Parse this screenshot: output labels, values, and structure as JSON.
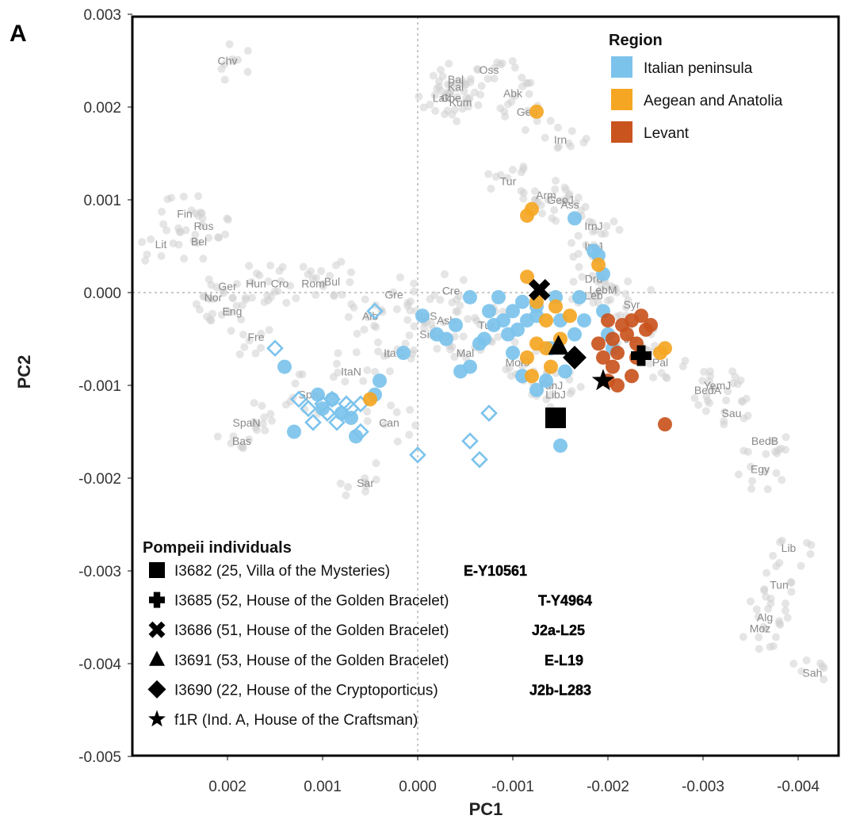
{
  "panel_label": "A",
  "colors": {
    "background_points": "#cfcfcf",
    "italian_peninsula": "#7cc3ec",
    "aegean_anatolia": "#f5a623",
    "levant": "#c9541e",
    "pompeii": "#000000"
  },
  "chart_data": {
    "type": "scatter",
    "xlabel": "PC1",
    "ylabel": "PC2",
    "xlim": [
      0.0028,
      -0.0042
    ],
    "ylim": [
      -0.0051,
      0.0029
    ],
    "x_reversed": true,
    "xticks": [
      0.002,
      0.001,
      0.0,
      -0.001,
      -0.002,
      -0.003,
      -0.004
    ],
    "xtick_labels": [
      "0.002",
      "0.001",
      "0.000",
      "-0.001",
      "-0.002",
      "-0.003",
      "-0.004"
    ],
    "yticks": [
      0.003,
      0.002,
      0.001,
      0.0,
      -0.001,
      -0.002,
      -0.003,
      -0.004,
      -0.005
    ],
    "ytick_labels": [
      "0.003",
      "0.002",
      "0.001",
      "0.000",
      "-0.001",
      "-0.002",
      "-0.003",
      "-0.004",
      "-0.005"
    ],
    "reference_lines": {
      "x": 0.0,
      "y": 0.0
    },
    "grid": false,
    "reference_populations": [
      {
        "label": "Chv",
        "x": 0.002,
        "y": 0.0025
      },
      {
        "label": "Oss",
        "x": -0.00075,
        "y": 0.0024
      },
      {
        "label": "Bal",
        "x": -0.0004,
        "y": 0.0023
      },
      {
        "label": "Kal",
        "x": -0.0004,
        "y": 0.00222
      },
      {
        "label": "Lak",
        "x": -0.00025,
        "y": 0.0021
      },
      {
        "label": "Che",
        "x": -0.00035,
        "y": 0.0021
      },
      {
        "label": "Kum",
        "x": -0.00045,
        "y": 0.00205
      },
      {
        "label": "Abk",
        "x": -0.001,
        "y": 0.00215
      },
      {
        "label": "Geo",
        "x": -0.00115,
        "y": 0.00195
      },
      {
        "label": "Irn",
        "x": -0.0015,
        "y": 0.00165
      },
      {
        "label": "Tur",
        "x": -0.00095,
        "y": 0.0012
      },
      {
        "label": "Arm",
        "x": -0.00135,
        "y": 0.00105
      },
      {
        "label": "GeoJ",
        "x": -0.0015,
        "y": 0.001
      },
      {
        "label": "Ass",
        "x": -0.0016,
        "y": 0.00095
      },
      {
        "label": "IrnJ",
        "x": -0.00185,
        "y": 0.00072
      },
      {
        "label": "IrqJ",
        "x": -0.00185,
        "y": 0.0005
      },
      {
        "label": "Dru",
        "x": -0.00185,
        "y": 0.00015
      },
      {
        "label": "LebM",
        "x": -0.00195,
        "y": 3e-05
      },
      {
        "label": "Leb",
        "x": -0.00185,
        "y": -3e-05
      },
      {
        "label": "Syr",
        "x": -0.00225,
        "y": -0.00013
      },
      {
        "label": "Jor",
        "x": -0.00225,
        "y": -0.0005
      },
      {
        "label": "Pal",
        "x": -0.00255,
        "y": -0.00075
      },
      {
        "label": "BedA",
        "x": -0.00305,
        "y": -0.00105
      },
      {
        "label": "YemJ",
        "x": -0.00315,
        "y": -0.001
      },
      {
        "label": "Sau",
        "x": -0.0033,
        "y": -0.0013
      },
      {
        "label": "BedB",
        "x": -0.00365,
        "y": -0.0016
      },
      {
        "label": "Egy",
        "x": -0.0036,
        "y": -0.0019
      },
      {
        "label": "Lib",
        "x": -0.0039,
        "y": -0.00275
      },
      {
        "label": "Tun",
        "x": -0.0038,
        "y": -0.00315
      },
      {
        "label": "Alg",
        "x": -0.00365,
        "y": -0.0035
      },
      {
        "label": "Moz",
        "x": -0.0036,
        "y": -0.00362
      },
      {
        "label": "Sah",
        "x": -0.00415,
        "y": -0.0041
      },
      {
        "label": "Fin",
        "x": 0.00245,
        "y": 0.00085
      },
      {
        "label": "Rus",
        "x": 0.00225,
        "y": 0.00072
      },
      {
        "label": "Bel",
        "x": 0.0023,
        "y": 0.00055
      },
      {
        "label": "Lit",
        "x": 0.0027,
        "y": 0.00052
      },
      {
        "label": "Nor",
        "x": 0.00215,
        "y": -5e-05
      },
      {
        "label": "Ger",
        "x": 0.002,
        "y": 7e-05
      },
      {
        "label": "Hun",
        "x": 0.0017,
        "y": 0.0001
      },
      {
        "label": "Cro",
        "x": 0.00145,
        "y": 0.0001
      },
      {
        "label": "Rom",
        "x": 0.0011,
        "y": 0.0001
      },
      {
        "label": "Bul",
        "x": 0.0009,
        "y": 0.00012
      },
      {
        "label": "Eng",
        "x": 0.00195,
        "y": -0.0002
      },
      {
        "label": "Alb",
        "x": 0.0005,
        "y": -0.00025
      },
      {
        "label": "Gre",
        "x": 0.00025,
        "y": -2e-05
      },
      {
        "label": "Fre",
        "x": 0.0017,
        "y": -0.00048
      },
      {
        "label": "ItaC",
        "x": 0.00025,
        "y": -0.00065
      },
      {
        "label": "ItaN",
        "x": 0.0007,
        "y": -0.00085
      },
      {
        "label": "Cre",
        "x": -0.00035,
        "y": 2e-05
      },
      {
        "label": "ItaS",
        "x": -0.0001,
        "y": -0.00025
      },
      {
        "label": "Ash",
        "x": -0.0003,
        "y": -0.0003
      },
      {
        "label": "Sic",
        "x": -0.0001,
        "y": -0.00045
      },
      {
        "label": "TurJ",
        "x": -0.00075,
        "y": -0.00035
      },
      {
        "label": "Mal",
        "x": -0.0005,
        "y": -0.00065
      },
      {
        "label": "MorJ",
        "x": -0.00105,
        "y": -0.00075
      },
      {
        "label": "TunJ",
        "x": -0.0014,
        "y": -0.001
      },
      {
        "label": "LibJ",
        "x": -0.00145,
        "y": -0.0011
      },
      {
        "label": "Spa",
        "x": 0.00115,
        "y": -0.0011
      },
      {
        "label": "Can",
        "x": 0.0003,
        "y": -0.0014
      },
      {
        "label": "SpaN",
        "x": 0.0018,
        "y": -0.0014
      },
      {
        "label": "Bas",
        "x": 0.00185,
        "y": -0.0016
      },
      {
        "label": "Sar",
        "x": 0.00055,
        "y": -0.00205
      }
    ],
    "series": [
      {
        "name": "Italian peninsula",
        "marker": "circle",
        "points": [
          [
            0.0014,
            -0.0008
          ],
          [
            0.0013,
            -0.0015
          ],
          [
            0.00105,
            -0.0011
          ],
          [
            0.001,
            -0.00125
          ],
          [
            0.0009,
            -0.00115
          ],
          [
            0.0008,
            -0.0013
          ],
          [
            0.0007,
            -0.00135
          ],
          [
            0.00065,
            -0.00155
          ],
          [
            0.00045,
            -0.0011
          ],
          [
            0.0004,
            -0.00095
          ],
          [
            0.00015,
            -0.00065
          ],
          [
            -5e-05,
            -0.00025
          ],
          [
            -0.0002,
            -0.00045
          ],
          [
            -0.0003,
            -0.0005
          ],
          [
            -0.0004,
            -0.00035
          ],
          [
            -0.00055,
            -5e-05
          ],
          [
            -0.00045,
            -0.00085
          ],
          [
            -0.00055,
            -0.0008
          ],
          [
            -0.00065,
            -0.00055
          ],
          [
            -0.00075,
            -0.0002
          ],
          [
            -0.00085,
            -5e-05
          ],
          [
            -0.0009,
            -0.0003
          ],
          [
            -0.00095,
            -0.00045
          ],
          [
            -0.001,
            -0.0002
          ],
          [
            -0.00105,
            -0.0004
          ],
          [
            -0.0011,
            -0.0001
          ],
          [
            -0.00115,
            -0.0003
          ],
          [
            -0.00125,
            -0.00025
          ],
          [
            -0.001,
            -0.00065
          ],
          [
            -0.0011,
            -0.0009
          ],
          [
            -0.00125,
            -0.00105
          ],
          [
            -0.00135,
            -0.00095
          ],
          [
            -0.0014,
            -0.0006
          ],
          [
            -0.00145,
            -5e-05
          ],
          [
            -0.0015,
            -0.0003
          ],
          [
            -0.00155,
            -0.00085
          ],
          [
            -0.00165,
            -0.00045
          ],
          [
            -0.0017,
            -5e-05
          ],
          [
            -0.00175,
            -0.0003
          ],
          [
            -0.00165,
            0.0008
          ],
          [
            -0.00185,
            0.00045
          ],
          [
            -0.0019,
            0.0004
          ],
          [
            -0.00195,
            0.0002
          ],
          [
            -0.00195,
            -0.0002
          ],
          [
            -0.002,
            -0.00045
          ],
          [
            -0.00205,
            -0.0006
          ],
          [
            -0.0015,
            -0.00165
          ],
          [
            -0.0007,
            -0.0005
          ],
          [
            -0.0008,
            -0.00035
          ],
          [
            -0.00125,
            -0.00015
          ]
        ]
      },
      {
        "name": "Italian peninsula (ancient)",
        "marker": "diamond-open",
        "points": [
          [
            0.0015,
            -0.0006
          ],
          [
            0.00125,
            -0.00115
          ],
          [
            0.00115,
            -0.00125
          ],
          [
            0.0011,
            -0.0014
          ],
          [
            0.001,
            -0.0012
          ],
          [
            0.00095,
            -0.0013
          ],
          [
            0.0009,
            -0.00115
          ],
          [
            0.00085,
            -0.0014
          ],
          [
            0.0008,
            -0.0013
          ],
          [
            0.00075,
            -0.0012
          ],
          [
            0.0007,
            -0.00125
          ],
          [
            0.0006,
            -0.0012
          ],
          [
            0.0006,
            -0.0015
          ],
          [
            0.00045,
            -0.0002
          ],
          [
            0.0,
            -0.00175
          ],
          [
            -0.00055,
            -0.0016
          ],
          [
            -0.00065,
            -0.0018
          ],
          [
            -0.00075,
            -0.0013
          ]
        ]
      },
      {
        "name": "Aegean and Anatolia",
        "marker": "circle",
        "points": [
          [
            -0.00125,
            0.00195
          ],
          [
            -0.0012,
            0.0009
          ],
          [
            -0.00115,
            0.00083
          ],
          [
            -0.00115,
            0.00017
          ],
          [
            -0.00125,
            -0.0001
          ],
          [
            -0.00135,
            -0.0003
          ],
          [
            -0.00145,
            -0.00015
          ],
          [
            -0.0015,
            -0.0005
          ],
          [
            -0.00125,
            -0.00055
          ],
          [
            -0.00115,
            -0.0007
          ],
          [
            -0.0012,
            -0.0009
          ],
          [
            -0.0016,
            -0.00025
          ],
          [
            -0.0019,
            0.0003
          ],
          [
            -0.00255,
            -0.00065
          ],
          [
            -0.0026,
            -0.0006
          ],
          [
            0.0005,
            -0.00115
          ],
          [
            -0.00135,
            -0.0006
          ],
          [
            -0.0014,
            -0.0008
          ]
        ]
      },
      {
        "name": "Levant",
        "marker": "circle",
        "points": [
          [
            -0.002,
            -0.0003
          ],
          [
            -0.00205,
            -0.0005
          ],
          [
            -0.0021,
            -0.00065
          ],
          [
            -0.00215,
            -0.00035
          ],
          [
            -0.0022,
            -0.00045
          ],
          [
            -0.00225,
            -0.0003
          ],
          [
            -0.0023,
            -0.00055
          ],
          [
            -0.0024,
            -0.0004
          ],
          [
            -0.00245,
            -0.00035
          ],
          [
            -0.0019,
            -0.00055
          ],
          [
            -0.00195,
            -0.0007
          ],
          [
            -0.00205,
            -0.0008
          ],
          [
            -0.002,
            -0.00095
          ],
          [
            -0.0021,
            -0.001
          ],
          [
            -0.0023,
            -0.0007
          ],
          [
            -0.00225,
            -0.0009
          ],
          [
            -0.0026,
            -0.00142
          ],
          [
            -0.00235,
            -0.00025
          ]
        ]
      }
    ],
    "pompeii_individuals": [
      {
        "id": "I3682",
        "description": "(25, Villa of the Mysteries)",
        "haplogroup": "E-Y10561",
        "marker": "square",
        "x": -0.00145,
        "y": -0.00135
      },
      {
        "id": "I3685",
        "description": "(52, House of the Golden Bracelet)",
        "haplogroup": "T-Y4964",
        "marker": "plus",
        "x": -0.00235,
        "y": -0.00068
      },
      {
        "id": "I3686",
        "description": "(51, House of the Golden Bracelet)",
        "haplogroup": "J2a-L25",
        "marker": "cross",
        "x": -0.00128,
        "y": 3e-05
      },
      {
        "id": "I3691",
        "description": "(53, House of the Golden Bracelet)",
        "haplogroup": "E-L19",
        "marker": "triangle",
        "x": -0.00148,
        "y": -0.00058
      },
      {
        "id": "I3690",
        "description": "(22, House of the Cryptoporticus)",
        "haplogroup": "J2b-L283",
        "marker": "diamond",
        "x": -0.00165,
        "y": -0.0007
      },
      {
        "id": "f1R",
        "description": "(Ind. A, House of the Craftsman)",
        "haplogroup": "",
        "marker": "star",
        "x": -0.00195,
        "y": -0.00095
      }
    ]
  },
  "legend_region": {
    "title": "Region",
    "position": "top-right",
    "items": [
      {
        "label": "Italian peninsula",
        "color": "#7cc3ec"
      },
      {
        "label": "Aegean and Anatolia",
        "color": "#f5a623"
      },
      {
        "label": "Levant",
        "color": "#c9541e"
      }
    ]
  },
  "legend_pompeii": {
    "title": "Pompeii individuals",
    "position": "bottom-left"
  }
}
